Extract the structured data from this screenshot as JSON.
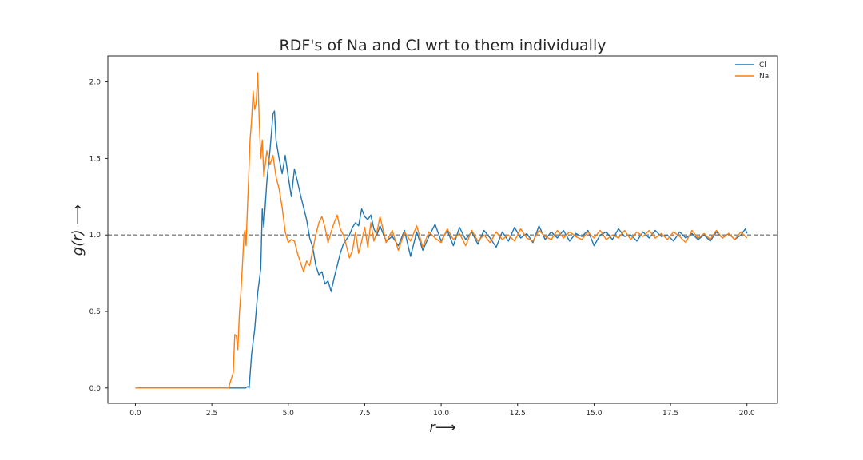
{
  "chart_data": {
    "type": "line",
    "title": "RDF's of Na and Cl wrt to them individually",
    "xlabel": "r⟶",
    "ylabel": "g(r) ⟶",
    "xlim": [
      -0.9,
      21.0
    ],
    "ylim": [
      -0.1,
      2.17
    ],
    "xticks": [
      0.0,
      2.5,
      5.0,
      7.5,
      10.0,
      12.5,
      15.0,
      17.5,
      20.0
    ],
    "xtick_labels": [
      "0.0",
      "2.5",
      "5.0",
      "7.5",
      "10.0",
      "12.5",
      "15.0",
      "17.5",
      "20.0"
    ],
    "yticks": [
      0.0,
      0.5,
      1.0,
      1.5,
      2.0
    ],
    "ytick_labels": [
      "0.0",
      "0.5",
      "1.0",
      "1.5",
      "2.0"
    ],
    "grid": false,
    "legend_position": "top-right",
    "reference_line": {
      "y": 1.0,
      "style": "dashed",
      "color": "#808080"
    },
    "series": [
      {
        "name": "Cl",
        "color": "#1f77b4",
        "points": [
          [
            0.0,
            0.0
          ],
          [
            3.6,
            0.0
          ],
          [
            3.68,
            0.01
          ],
          [
            3.72,
            0.0
          ],
          [
            3.8,
            0.22
          ],
          [
            3.9,
            0.38
          ],
          [
            4.0,
            0.62
          ],
          [
            4.1,
            0.78
          ],
          [
            4.15,
            1.17
          ],
          [
            4.2,
            1.05
          ],
          [
            4.3,
            1.35
          ],
          [
            4.4,
            1.55
          ],
          [
            4.5,
            1.79
          ],
          [
            4.55,
            1.81
          ],
          [
            4.6,
            1.62
          ],
          [
            4.7,
            1.5
          ],
          [
            4.8,
            1.4
          ],
          [
            4.9,
            1.52
          ],
          [
            5.0,
            1.38
          ],
          [
            5.1,
            1.25
          ],
          [
            5.2,
            1.43
          ],
          [
            5.3,
            1.35
          ],
          [
            5.4,
            1.26
          ],
          [
            5.5,
            1.18
          ],
          [
            5.6,
            1.1
          ],
          [
            5.7,
            0.98
          ],
          [
            5.8,
            0.92
          ],
          [
            5.9,
            0.8
          ],
          [
            6.0,
            0.74
          ],
          [
            6.1,
            0.76
          ],
          [
            6.2,
            0.68
          ],
          [
            6.3,
            0.7
          ],
          [
            6.4,
            0.63
          ],
          [
            6.5,
            0.72
          ],
          [
            6.6,
            0.8
          ],
          [
            6.7,
            0.88
          ],
          [
            6.8,
            0.94
          ],
          [
            6.9,
            0.97
          ],
          [
            7.0,
            1.0
          ],
          [
            7.1,
            1.05
          ],
          [
            7.2,
            1.08
          ],
          [
            7.3,
            1.06
          ],
          [
            7.4,
            1.17
          ],
          [
            7.5,
            1.12
          ],
          [
            7.6,
            1.1
          ],
          [
            7.7,
            1.13
          ],
          [
            7.8,
            1.04
          ],
          [
            7.9,
            1.0
          ],
          [
            8.0,
            1.06
          ],
          [
            8.2,
            0.96
          ],
          [
            8.4,
            0.99
          ],
          [
            8.6,
            0.93
          ],
          [
            8.8,
            1.03
          ],
          [
            9.0,
            0.86
          ],
          [
            9.2,
            1.02
          ],
          [
            9.4,
            0.9
          ],
          [
            9.6,
            0.99
          ],
          [
            9.8,
            1.07
          ],
          [
            10.0,
            0.96
          ],
          [
            10.2,
            1.03
          ],
          [
            10.4,
            0.93
          ],
          [
            10.6,
            1.05
          ],
          [
            10.8,
            0.97
          ],
          [
            11.0,
            1.02
          ],
          [
            11.2,
            0.94
          ],
          [
            11.4,
            1.03
          ],
          [
            11.6,
            0.98
          ],
          [
            11.8,
            0.92
          ],
          [
            12.0,
            1.02
          ],
          [
            12.2,
            0.96
          ],
          [
            12.4,
            1.05
          ],
          [
            12.6,
            0.98
          ],
          [
            12.8,
            1.01
          ],
          [
            13.0,
            0.95
          ],
          [
            13.2,
            1.06
          ],
          [
            13.4,
            0.97
          ],
          [
            13.6,
            1.02
          ],
          [
            13.8,
            0.98
          ],
          [
            14.0,
            1.03
          ],
          [
            14.2,
            0.96
          ],
          [
            14.4,
            1.01
          ],
          [
            14.6,
            0.99
          ],
          [
            14.8,
            1.03
          ],
          [
            15.0,
            0.93
          ],
          [
            15.2,
            1.0
          ],
          [
            15.4,
            1.02
          ],
          [
            15.6,
            0.97
          ],
          [
            15.8,
            1.04
          ],
          [
            16.0,
            0.99
          ],
          [
            16.2,
            1.0
          ],
          [
            16.4,
            0.96
          ],
          [
            16.6,
            1.02
          ],
          [
            16.8,
            0.98
          ],
          [
            17.0,
            1.03
          ],
          [
            17.2,
            0.99
          ],
          [
            17.4,
            1.0
          ],
          [
            17.6,
            0.96
          ],
          [
            17.8,
            1.02
          ],
          [
            18.0,
            0.98
          ],
          [
            18.2,
            1.01
          ],
          [
            18.4,
            0.97
          ],
          [
            18.6,
            1.0
          ],
          [
            18.8,
            0.96
          ],
          [
            19.0,
            1.02
          ],
          [
            19.2,
            0.98
          ],
          [
            19.4,
            1.01
          ],
          [
            19.6,
            0.97
          ],
          [
            19.8,
            1.0
          ],
          [
            19.95,
            1.04
          ],
          [
            20.0,
            1.01
          ]
        ]
      },
      {
        "name": "Na",
        "color": "#ff7f0e",
        "points": [
          [
            0.0,
            0.0
          ],
          [
            3.05,
            0.0
          ],
          [
            3.12,
            0.05
          ],
          [
            3.2,
            0.1
          ],
          [
            3.25,
            0.35
          ],
          [
            3.3,
            0.34
          ],
          [
            3.35,
            0.25
          ],
          [
            3.4,
            0.48
          ],
          [
            3.45,
            0.62
          ],
          [
            3.5,
            0.8
          ],
          [
            3.55,
            1.0
          ],
          [
            3.58,
            1.03
          ],
          [
            3.62,
            0.93
          ],
          [
            3.65,
            1.1
          ],
          [
            3.7,
            1.35
          ],
          [
            3.75,
            1.62
          ],
          [
            3.8,
            1.75
          ],
          [
            3.85,
            1.94
          ],
          [
            3.9,
            1.82
          ],
          [
            3.95,
            1.86
          ],
          [
            4.0,
            2.06
          ],
          [
            4.05,
            1.75
          ],
          [
            4.1,
            1.5
          ],
          [
            4.15,
            1.62
          ],
          [
            4.2,
            1.38
          ],
          [
            4.3,
            1.55
          ],
          [
            4.4,
            1.46
          ],
          [
            4.5,
            1.52
          ],
          [
            4.6,
            1.38
          ],
          [
            4.7,
            1.3
          ],
          [
            4.8,
            1.18
          ],
          [
            4.9,
            1.02
          ],
          [
            5.0,
            0.95
          ],
          [
            5.1,
            0.97
          ],
          [
            5.2,
            0.96
          ],
          [
            5.3,
            0.88
          ],
          [
            5.4,
            0.82
          ],
          [
            5.5,
            0.76
          ],
          [
            5.6,
            0.83
          ],
          [
            5.7,
            0.8
          ],
          [
            5.8,
            0.9
          ],
          [
            5.9,
            1.0
          ],
          [
            6.0,
            1.08
          ],
          [
            6.1,
            1.12
          ],
          [
            6.2,
            1.05
          ],
          [
            6.3,
            0.95
          ],
          [
            6.4,
            1.02
          ],
          [
            6.5,
            1.08
          ],
          [
            6.6,
            1.13
          ],
          [
            6.7,
            1.04
          ],
          [
            6.8,
            1.0
          ],
          [
            6.9,
            0.93
          ],
          [
            7.0,
            0.85
          ],
          [
            7.1,
            0.9
          ],
          [
            7.2,
            1.02
          ],
          [
            7.3,
            0.88
          ],
          [
            7.4,
            0.96
          ],
          [
            7.5,
            1.05
          ],
          [
            7.6,
            0.92
          ],
          [
            7.7,
            1.08
          ],
          [
            7.8,
            0.96
          ],
          [
            7.9,
            1.02
          ],
          [
            8.0,
            1.12
          ],
          [
            8.2,
            0.95
          ],
          [
            8.4,
            1.03
          ],
          [
            8.6,
            0.9
          ],
          [
            8.8,
            1.02
          ],
          [
            9.0,
            0.96
          ],
          [
            9.2,
            1.06
          ],
          [
            9.4,
            0.92
          ],
          [
            9.6,
            1.02
          ],
          [
            9.8,
            0.98
          ],
          [
            10.0,
            0.95
          ],
          [
            10.2,
            1.04
          ],
          [
            10.4,
            0.97
          ],
          [
            10.6,
            1.01
          ],
          [
            10.8,
            0.93
          ],
          [
            11.0,
            1.03
          ],
          [
            11.2,
            0.96
          ],
          [
            11.4,
            1.0
          ],
          [
            11.6,
            0.95
          ],
          [
            11.8,
            1.02
          ],
          [
            12.0,
            0.97
          ],
          [
            12.2,
            1.0
          ],
          [
            12.4,
            0.96
          ],
          [
            12.6,
            1.04
          ],
          [
            12.8,
            0.98
          ],
          [
            13.0,
            0.96
          ],
          [
            13.2,
            1.03
          ],
          [
            13.4,
            0.99
          ],
          [
            13.6,
            0.97
          ],
          [
            13.8,
            1.03
          ],
          [
            14.0,
            0.98
          ],
          [
            14.2,
            1.02
          ],
          [
            14.4,
            0.99
          ],
          [
            14.6,
            0.97
          ],
          [
            14.8,
            1.02
          ],
          [
            15.0,
            0.98
          ],
          [
            15.2,
            1.03
          ],
          [
            15.4,
            0.97
          ],
          [
            15.6,
            1.0
          ],
          [
            15.8,
            0.98
          ],
          [
            16.0,
            1.03
          ],
          [
            16.2,
            0.97
          ],
          [
            16.4,
            1.02
          ],
          [
            16.6,
            0.99
          ],
          [
            16.8,
            1.03
          ],
          [
            17.0,
            0.98
          ],
          [
            17.2,
            1.01
          ],
          [
            17.4,
            0.97
          ],
          [
            17.6,
            1.02
          ],
          [
            17.8,
            0.99
          ],
          [
            18.0,
            0.95
          ],
          [
            18.2,
            1.03
          ],
          [
            18.4,
            0.98
          ],
          [
            18.6,
            1.01
          ],
          [
            18.8,
            0.97
          ],
          [
            19.0,
            1.03
          ],
          [
            19.2,
            0.98
          ],
          [
            19.4,
            1.01
          ],
          [
            19.6,
            0.97
          ],
          [
            19.8,
            1.02
          ],
          [
            20.0,
            0.98
          ]
        ]
      }
    ]
  }
}
